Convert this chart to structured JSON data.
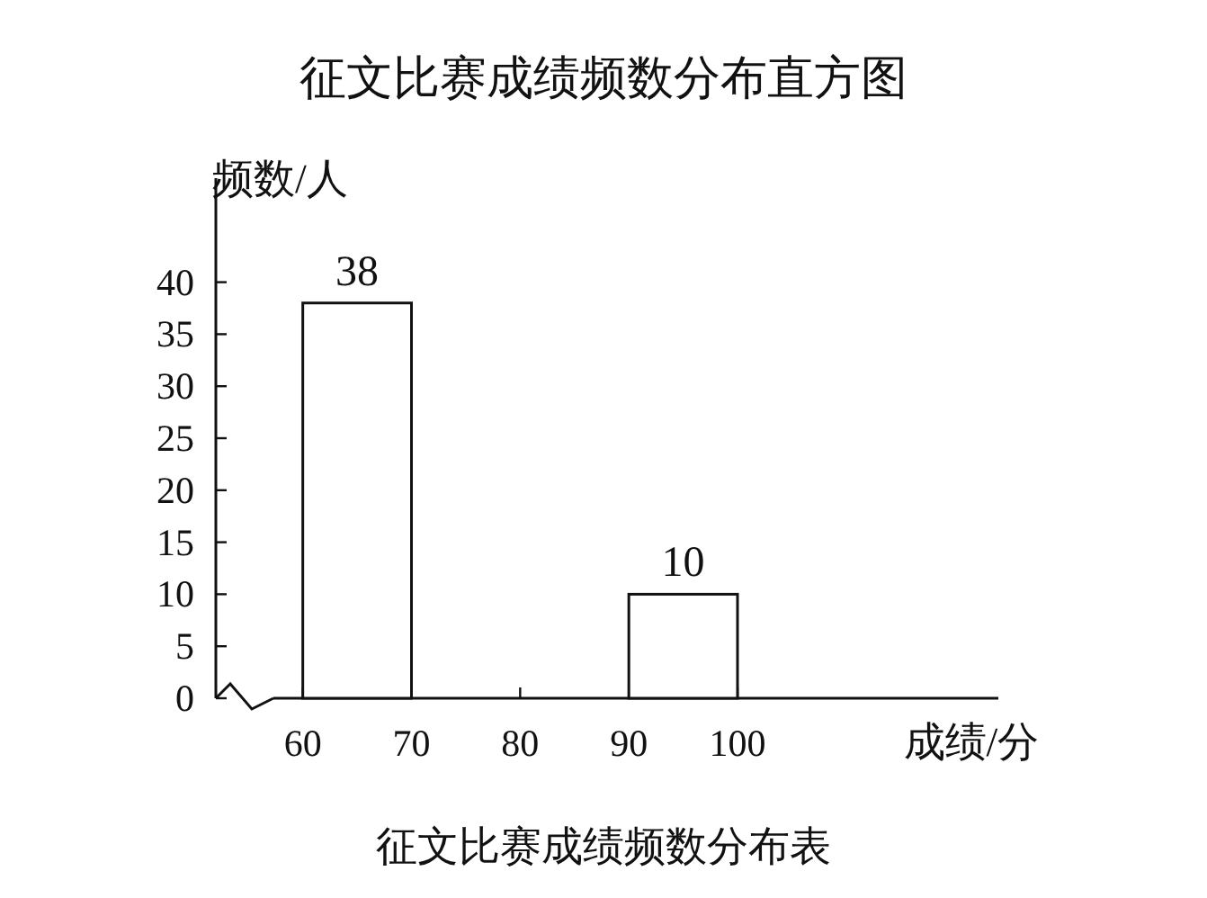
{
  "chart_data": {
    "type": "histogram",
    "title": "征文比赛成绩频数分布直方图",
    "xlabel": "成绩/分",
    "ylabel": "频数/人",
    "annotations": [
      "征文比赛成绩频数分布表"
    ],
    "bins": [
      60,
      70,
      80,
      90,
      100
    ],
    "values": [
      38,
      null,
      null,
      10
    ],
    "color": "#ffffff",
    "data_labels": true,
    "xlim": [
      52,
      124
    ],
    "ylim": [
      0,
      50
    ],
    "xticks": [
      60,
      70,
      80,
      90,
      100
    ],
    "yticks": [
      0,
      5,
      10,
      15,
      20,
      25,
      30,
      35,
      40
    ]
  }
}
